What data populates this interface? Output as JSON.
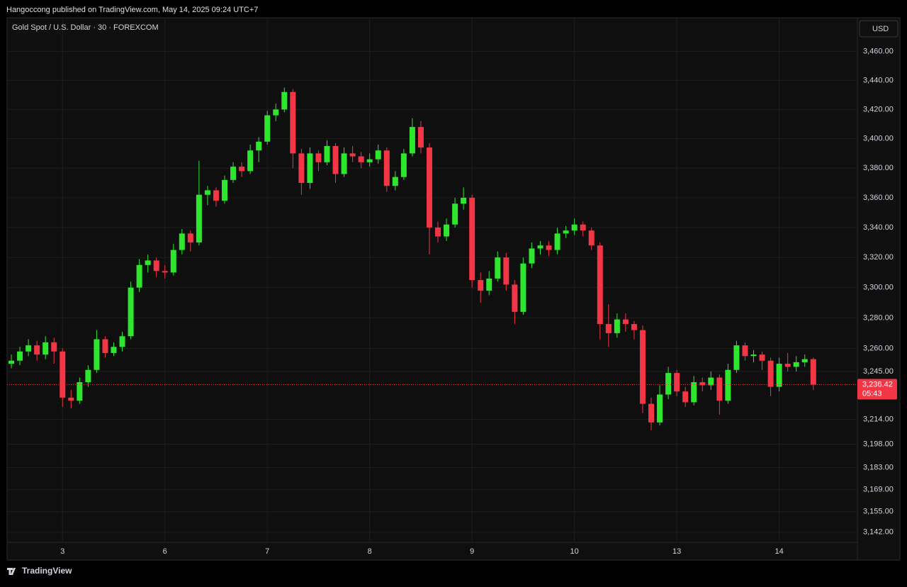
{
  "header": {
    "published": "Hangoccong published on TradingView.com, May 14, 2025 09:24 UTC+7",
    "brand": "TradingView"
  },
  "chart_data": {
    "type": "candlestick",
    "title": "Gold Spot / U.S. Dollar · 30 · FOREXCOM",
    "currency": "USD",
    "last_price_label": "3,236.42",
    "countdown": "05:43",
    "log_scale": true,
    "grid": true,
    "up_color": "#2ee62e",
    "down_color": "#f23645",
    "categories": [
      null,
      null,
      null,
      null,
      null,
      null,
      "3",
      null,
      null,
      null,
      null,
      null,
      null,
      null,
      null,
      null,
      null,
      null,
      "6",
      null,
      null,
      null,
      null,
      null,
      null,
      null,
      null,
      null,
      null,
      null,
      "7",
      null,
      null,
      null,
      null,
      null,
      null,
      null,
      null,
      null,
      null,
      null,
      "8",
      null,
      null,
      null,
      null,
      null,
      null,
      null,
      null,
      null,
      null,
      null,
      "9",
      null,
      null,
      null,
      null,
      null,
      null,
      null,
      null,
      null,
      null,
      null,
      "10",
      null,
      null,
      null,
      null,
      null,
      null,
      null,
      null,
      null,
      null,
      null,
      "13",
      null,
      null,
      null,
      null,
      null,
      null,
      null,
      null,
      null,
      null,
      null,
      "14",
      null,
      null,
      null,
      null
    ],
    "ohlc": [
      [
        3250,
        3256,
        3247,
        3252
      ],
      [
        3252,
        3261,
        3249,
        3258
      ],
      [
        3258,
        3266,
        3255,
        3262
      ],
      [
        3262,
        3265,
        3252,
        3256
      ],
      [
        3256,
        3268,
        3253,
        3264
      ],
      [
        3264,
        3267,
        3250,
        3258
      ],
      [
        3258,
        3260,
        3222,
        3228
      ],
      [
        3228,
        3233,
        3221,
        3226
      ],
      [
        3226,
        3241,
        3224,
        3238
      ],
      [
        3238,
        3249,
        3235,
        3246
      ],
      [
        3246,
        3272,
        3244,
        3266
      ],
      [
        3266,
        3268,
        3254,
        3257
      ],
      [
        3257,
        3264,
        3255,
        3261
      ],
      [
        3261,
        3271,
        3258,
        3268
      ],
      [
        3268,
        3304,
        3266,
        3300
      ],
      [
        3300,
        3319,
        3297,
        3315
      ],
      [
        3315,
        3322,
        3310,
        3318
      ],
      [
        3318,
        3320,
        3307,
        3311
      ],
      [
        3311,
        3315,
        3306,
        3310
      ],
      [
        3310,
        3329,
        3308,
        3325
      ],
      [
        3325,
        3339,
        3322,
        3336
      ],
      [
        3336,
        3338,
        3324,
        3330
      ],
      [
        3330,
        3385,
        3328,
        3362
      ],
      [
        3362,
        3368,
        3355,
        3365
      ],
      [
        3365,
        3367,
        3354,
        3358
      ],
      [
        3358,
        3375,
        3356,
        3372
      ],
      [
        3372,
        3384,
        3370,
        3381
      ],
      [
        3381,
        3384,
        3374,
        3378
      ],
      [
        3378,
        3396,
        3376,
        3392
      ],
      [
        3392,
        3401,
        3384,
        3398
      ],
      [
        3398,
        3419,
        3396,
        3416
      ],
      [
        3416,
        3424,
        3412,
        3420
      ],
      [
        3420,
        3435,
        3418,
        3432
      ],
      [
        3432,
        3434,
        3380,
        3390
      ],
      [
        3390,
        3393,
        3362,
        3370
      ],
      [
        3370,
        3394,
        3366,
        3390
      ],
      [
        3390,
        3392,
        3378,
        3384
      ],
      [
        3384,
        3399,
        3382,
        3395
      ],
      [
        3395,
        3397,
        3370,
        3376
      ],
      [
        3376,
        3394,
        3374,
        3390
      ],
      [
        3390,
        3395,
        3384,
        3388
      ],
      [
        3388,
        3391,
        3380,
        3384
      ],
      [
        3384,
        3390,
        3381,
        3386
      ],
      [
        3386,
        3396,
        3383,
        3392
      ],
      [
        3392,
        3394,
        3364,
        3368
      ],
      [
        3368,
        3378,
        3365,
        3374
      ],
      [
        3374,
        3393,
        3372,
        3390
      ],
      [
        3390,
        3414,
        3388,
        3408
      ],
      [
        3408,
        3412,
        3390,
        3394
      ],
      [
        3394,
        3397,
        3322,
        3340
      ],
      [
        3340,
        3344,
        3330,
        3334
      ],
      [
        3334,
        3346,
        3331,
        3342
      ],
      [
        3342,
        3360,
        3340,
        3356
      ],
      [
        3356,
        3367,
        3352,
        3360
      ],
      [
        3360,
        3362,
        3300,
        3305
      ],
      [
        3305,
        3310,
        3290,
        3298
      ],
      [
        3298,
        3311,
        3295,
        3306
      ],
      [
        3306,
        3324,
        3304,
        3320
      ],
      [
        3320,
        3323,
        3298,
        3302
      ],
      [
        3302,
        3305,
        3276,
        3284
      ],
      [
        3284,
        3320,
        3282,
        3316
      ],
      [
        3316,
        3330,
        3313,
        3326
      ],
      [
        3326,
        3331,
        3322,
        3328
      ],
      [
        3328,
        3331,
        3321,
        3325
      ],
      [
        3325,
        3340,
        3322,
        3336
      ],
      [
        3336,
        3341,
        3333,
        3338
      ],
      [
        3338,
        3346,
        3335,
        3342
      ],
      [
        3342,
        3344,
        3334,
        3338
      ],
      [
        3338,
        3340,
        3325,
        3328
      ],
      [
        3328,
        3330,
        3266,
        3276
      ],
      [
        3276,
        3289,
        3261,
        3270
      ],
      [
        3270,
        3283,
        3267,
        3279
      ],
      [
        3279,
        3283,
        3271,
        3276
      ],
      [
        3276,
        3278,
        3266,
        3272
      ],
      [
        3272,
        3275,
        3218,
        3224
      ],
      [
        3224,
        3228,
        3207,
        3212
      ],
      [
        3212,
        3236,
        3210,
        3230
      ],
      [
        3230,
        3248,
        3227,
        3244
      ],
      [
        3244,
        3246,
        3229,
        3232
      ],
      [
        3232,
        3235,
        3222,
        3225
      ],
      [
        3225,
        3242,
        3223,
        3238
      ],
      [
        3238,
        3241,
        3232,
        3236
      ],
      [
        3236,
        3245,
        3233,
        3241
      ],
      [
        3241,
        3243,
        3217,
        3226
      ],
      [
        3226,
        3250,
        3224,
        3246
      ],
      [
        3246,
        3265,
        3244,
        3262
      ],
      [
        3262,
        3264,
        3252,
        3255
      ],
      [
        3255,
        3259,
        3251,
        3256
      ],
      [
        3256,
        3258,
        3246,
        3252
      ],
      [
        3252,
        3254,
        3229,
        3235
      ],
      [
        3235,
        3254,
        3232,
        3250
      ],
      [
        3250,
        3257,
        3245,
        3248
      ],
      [
        3248,
        3255,
        3245,
        3251
      ],
      [
        3251,
        3256,
        3248,
        3253
      ],
      [
        3253,
        3254,
        3233,
        3236.42
      ]
    ],
    "ylim": [
      3125,
      3483
    ],
    "yticks": [
      {
        "value": 3460,
        "label": "3,460.00"
      },
      {
        "value": 3440,
        "label": "3,440.00"
      },
      {
        "value": 3420,
        "label": "3,420.00"
      },
      {
        "value": 3400,
        "label": "3,400.00"
      },
      {
        "value": 3380,
        "label": "3,380.00"
      },
      {
        "value": 3360,
        "label": "3,360.00"
      },
      {
        "value": 3340,
        "label": "3,340.00"
      },
      {
        "value": 3320,
        "label": "3,320.00"
      },
      {
        "value": 3300,
        "label": "3,300.00"
      },
      {
        "value": 3280,
        "label": "3,280.00"
      },
      {
        "value": 3260,
        "label": "3,260.00"
      },
      {
        "value": 3245,
        "label": "3,245.00"
      },
      {
        "value": 3214,
        "label": "3,214.00"
      },
      {
        "value": 3198,
        "label": "3,198.00"
      },
      {
        "value": 3183,
        "label": "3,183.00"
      },
      {
        "value": 3169,
        "label": "3,169.00"
      },
      {
        "value": 3155,
        "label": "3,155.00"
      },
      {
        "value": 3142,
        "label": "3,142.00"
      }
    ]
  }
}
